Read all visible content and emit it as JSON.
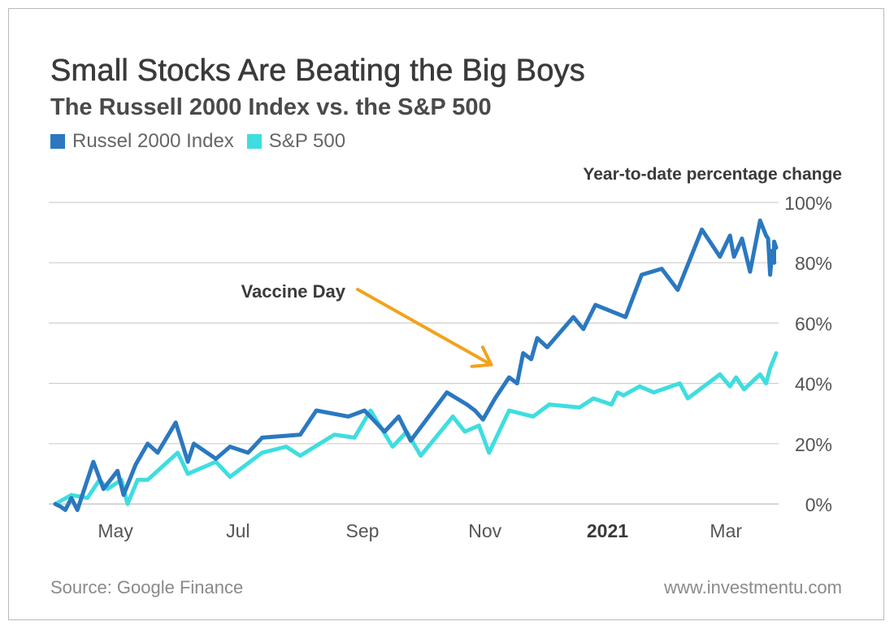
{
  "chart_data": {
    "type": "line",
    "title": "Small Stocks Are Beating the Big Boys",
    "subtitle": "The Russell 2000 Index vs. the S&P 500",
    "ylabel": "Year-to-date percentage change",
    "xlabel": "",
    "ylim": [
      0,
      100
    ],
    "yticks": [
      "100%",
      "80%",
      "60%",
      "40%",
      "20%",
      "0%"
    ],
    "y_tick_values": [
      100,
      80,
      60,
      40,
      20,
      0
    ],
    "xlim": [
      "2020-04-01",
      "2021-03-26"
    ],
    "x_ticks": [
      {
        "label": "May",
        "date": "2020-05-01",
        "bold": false
      },
      {
        "label": "Jul",
        "date": "2020-07-01",
        "bold": false
      },
      {
        "label": "Sep",
        "date": "2020-09-01",
        "bold": false
      },
      {
        "label": "Nov",
        "date": "2020-11-01",
        "bold": false
      },
      {
        "label": "2021",
        "date": "2021-01-01",
        "bold": true
      },
      {
        "label": "Mar",
        "date": "2021-03-01",
        "bold": false
      }
    ],
    "grid": true,
    "legend_position": "top-left",
    "annotation": {
      "text": "Vaccine Day",
      "date": "2020-11-09",
      "value": 47
    },
    "series": [
      {
        "name": "Russel 2000 Index",
        "color": "#2b78c0",
        "points": [
          [
            "2020-04-01",
            0
          ],
          [
            "2020-04-04",
            -1
          ],
          [
            "2020-04-06",
            -2
          ],
          [
            "2020-04-09",
            2
          ],
          [
            "2020-04-12",
            -2
          ],
          [
            "2020-04-20",
            14
          ],
          [
            "2020-04-25",
            5
          ],
          [
            "2020-05-02",
            11
          ],
          [
            "2020-05-05",
            3
          ],
          [
            "2020-05-11",
            13
          ],
          [
            "2020-05-17",
            20
          ],
          [
            "2020-05-22",
            17
          ],
          [
            "2020-05-31",
            27
          ],
          [
            "2020-06-06",
            14
          ],
          [
            "2020-06-09",
            20
          ],
          [
            "2020-06-20",
            15
          ],
          [
            "2020-06-27",
            19
          ],
          [
            "2020-07-06",
            17
          ],
          [
            "2020-07-13",
            22
          ],
          [
            "2020-08-01",
            23
          ],
          [
            "2020-08-09",
            31
          ],
          [
            "2020-08-25",
            29
          ],
          [
            "2020-09-02",
            31
          ],
          [
            "2020-09-12",
            24
          ],
          [
            "2020-09-19",
            29
          ],
          [
            "2020-09-25",
            21
          ],
          [
            "2020-10-13",
            37
          ],
          [
            "2020-10-23",
            33
          ],
          [
            "2020-10-27",
            31
          ],
          [
            "2020-10-31",
            28
          ],
          [
            "2020-11-06",
            35
          ],
          [
            "2020-11-13",
            42
          ],
          [
            "2020-11-17",
            40
          ],
          [
            "2020-11-20",
            50
          ],
          [
            "2020-11-24",
            48
          ],
          [
            "2020-11-27",
            55
          ],
          [
            "2020-12-02",
            52
          ],
          [
            "2020-12-15",
            62
          ],
          [
            "2020-12-20",
            58
          ],
          [
            "2020-12-26",
            66
          ],
          [
            "2021-01-10",
            62
          ],
          [
            "2021-01-18",
            76
          ],
          [
            "2021-01-28",
            78
          ],
          [
            "2021-02-05",
            71
          ],
          [
            "2021-02-17",
            91
          ],
          [
            "2021-02-26",
            82
          ],
          [
            "2021-03-03",
            89
          ],
          [
            "2021-03-05",
            82
          ],
          [
            "2021-03-09",
            88
          ],
          [
            "2021-03-13",
            77
          ],
          [
            "2021-03-18",
            94
          ],
          [
            "2021-03-21",
            89
          ],
          [
            "2021-03-22",
            88
          ],
          [
            "2021-03-23",
            76
          ],
          [
            "2021-03-24",
            84
          ],
          [
            "2021-03-25",
            80
          ],
          [
            "2021-03-25",
            87
          ],
          [
            "2021-03-26",
            85
          ]
        ]
      },
      {
        "name": "S&P 500",
        "color": "#3fdde0",
        "points": [
          [
            "2020-04-01",
            0
          ],
          [
            "2020-04-09",
            3
          ],
          [
            "2020-04-17",
            2
          ],
          [
            "2020-04-23",
            8
          ],
          [
            "2020-04-27",
            5
          ],
          [
            "2020-05-04",
            8
          ],
          [
            "2020-05-07",
            0
          ],
          [
            "2020-05-12",
            8
          ],
          [
            "2020-05-17",
            8
          ],
          [
            "2020-06-01",
            17
          ],
          [
            "2020-06-06",
            10
          ],
          [
            "2020-06-20",
            14
          ],
          [
            "2020-06-27",
            9
          ],
          [
            "2020-07-13",
            17
          ],
          [
            "2020-07-25",
            19
          ],
          [
            "2020-08-01",
            16
          ],
          [
            "2020-08-18",
            23
          ],
          [
            "2020-08-28",
            22
          ],
          [
            "2020-09-05",
            31
          ],
          [
            "2020-09-16",
            19
          ],
          [
            "2020-09-23",
            24
          ],
          [
            "2020-09-30",
            16
          ],
          [
            "2020-10-16",
            29
          ],
          [
            "2020-10-22",
            24
          ],
          [
            "2020-10-29",
            26
          ],
          [
            "2020-11-03",
            17
          ],
          [
            "2020-11-13",
            31
          ],
          [
            "2020-11-25",
            29
          ],
          [
            "2020-12-03",
            33
          ],
          [
            "2020-12-18",
            32
          ],
          [
            "2020-12-25",
            35
          ],
          [
            "2021-01-03",
            33
          ],
          [
            "2021-01-06",
            37
          ],
          [
            "2021-01-09",
            36
          ],
          [
            "2021-01-17",
            39
          ],
          [
            "2021-01-24",
            37
          ],
          [
            "2021-02-06",
            40
          ],
          [
            "2021-02-10",
            35
          ],
          [
            "2021-02-26",
            43
          ],
          [
            "2021-03-03",
            39
          ],
          [
            "2021-03-06",
            42
          ],
          [
            "2021-03-10",
            38
          ],
          [
            "2021-03-18",
            43
          ],
          [
            "2021-03-21",
            40
          ],
          [
            "2021-03-23",
            45
          ],
          [
            "2021-03-26",
            50
          ]
        ]
      }
    ]
  },
  "footer": {
    "source": "Source: Google Finance",
    "website": "www.investmentu.com"
  },
  "colors": {
    "text_dark": "#3a3a3a",
    "gridline": "#cfcfcf",
    "annotation_arrow": "#f2a31c"
  }
}
